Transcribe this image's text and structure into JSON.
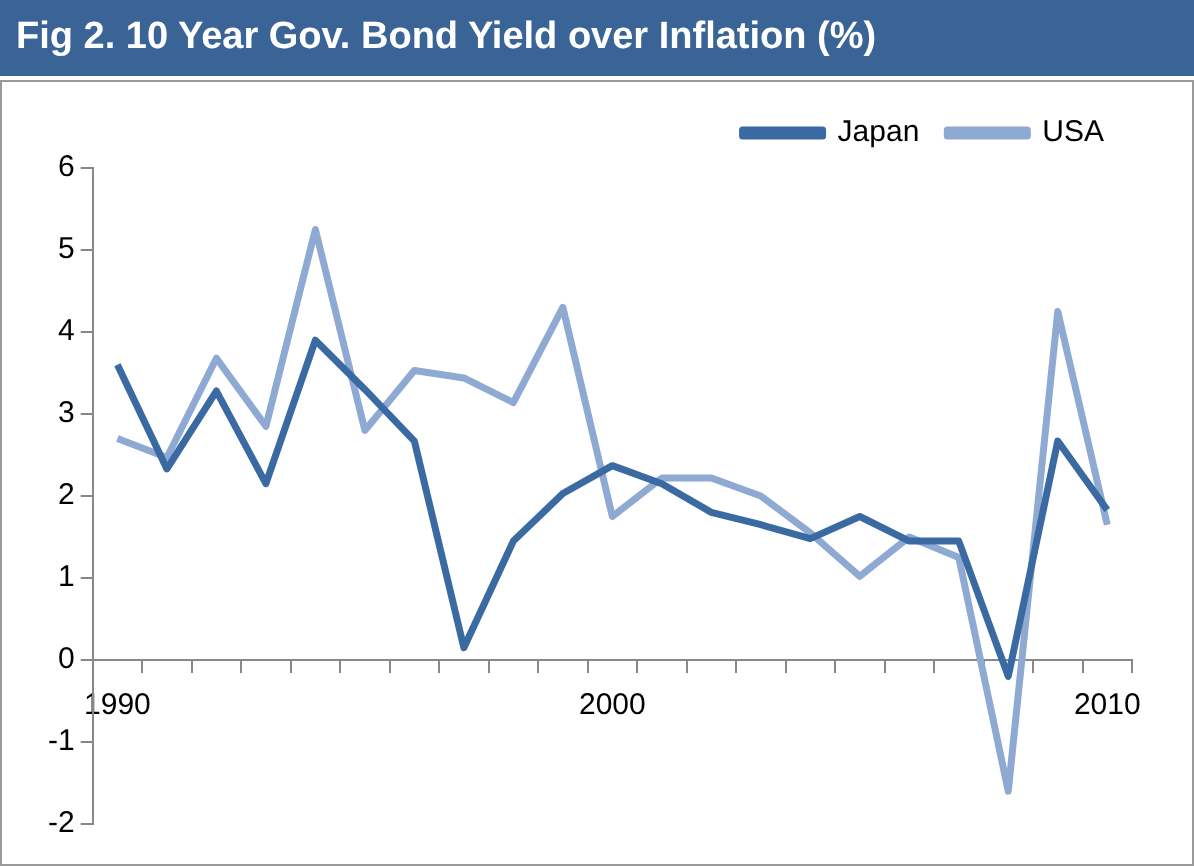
{
  "chart_data": {
    "type": "line",
    "title": "Fig 2. 10 Year Gov. Bond Yield over Inflation (%)",
    "categories": [
      "1990",
      null,
      null,
      null,
      null,
      null,
      null,
      null,
      null,
      null,
      "2000",
      null,
      null,
      null,
      null,
      null,
      null,
      null,
      null,
      null,
      "2010"
    ],
    "series": [
      {
        "name": "Japan",
        "color": "#3b6aa3",
        "values": [
          3.6,
          2.33,
          3.28,
          2.15,
          3.9,
          3.3,
          2.67,
          0.15,
          1.45,
          2.03,
          2.37,
          2.15,
          1.8,
          1.65,
          1.48,
          1.75,
          1.45,
          1.45,
          -0.2,
          2.67,
          1.83
        ]
      },
      {
        "name": "USA",
        "color": "#8eaad3",
        "values": [
          2.7,
          2.47,
          3.68,
          2.85,
          5.25,
          2.8,
          3.53,
          3.44,
          3.14,
          4.3,
          1.75,
          2.22,
          2.22,
          2.0,
          1.55,
          1.02,
          1.5,
          1.25,
          -1.6,
          4.25,
          1.65
        ]
      }
    ],
    "ylim": [
      -2,
      6
    ],
    "yticks": [
      -2,
      -1,
      0,
      1,
      2,
      3,
      4,
      5,
      6
    ],
    "grid": false,
    "legend": "top right",
    "marker": "none",
    "line_style": "solid"
  }
}
